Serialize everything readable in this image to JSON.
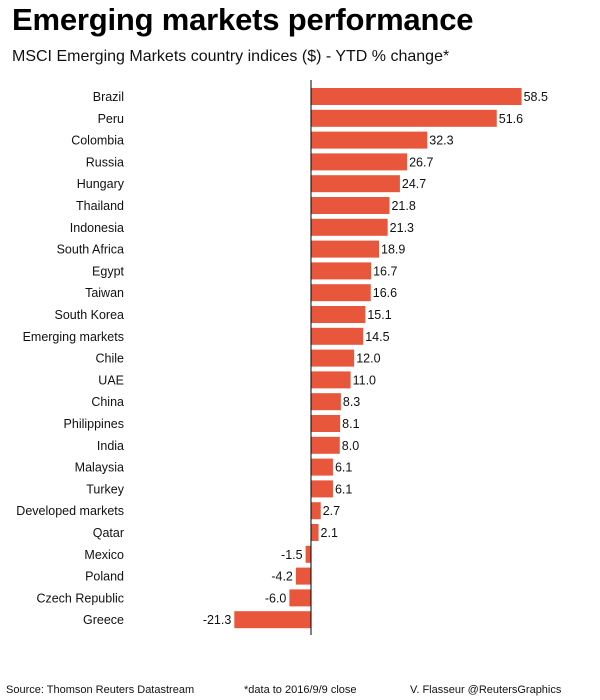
{
  "chart_data": {
    "type": "bar",
    "orientation": "horizontal",
    "title": "Emerging markets performance",
    "subtitle": "MSCI Emerging Markets country indices ($) - YTD % change*",
    "categories": [
      "Brazil",
      "Peru",
      "Colombia",
      "Russia",
      "Hungary",
      "Thailand",
      "Indonesia",
      "South Africa",
      "Egypt",
      "Taiwan",
      "South Korea",
      "Emerging markets",
      "Chile",
      "UAE",
      "China",
      "Philippines",
      "India",
      "Malaysia",
      "Turkey",
      "Developed markets",
      "Qatar",
      "Mexico",
      "Poland",
      "Czech Republic",
      "Greece"
    ],
    "values": [
      58.5,
      51.6,
      32.3,
      26.7,
      24.7,
      21.8,
      21.3,
      18.9,
      16.7,
      16.6,
      15.1,
      14.5,
      12.0,
      11.0,
      8.3,
      8.1,
      8.0,
      6.1,
      6.1,
      2.7,
      2.1,
      -1.5,
      -4.2,
      -6.0,
      -21.3
    ],
    "value_labels": [
      "58.5",
      "51.6",
      "32.3",
      "26.7",
      "24.7",
      "21.8",
      "21.3",
      "18.9",
      "16.7",
      "16.6",
      "15.1",
      "14.5",
      "12.0",
      "11.0",
      "8.3",
      "8.1",
      "8.0",
      "6.1",
      "6.1",
      "2.7",
      "2.1",
      "-1.5",
      "-4.2",
      "-6.0",
      "-21.3"
    ],
    "xlim": [
      -22,
      59
    ],
    "grid": false,
    "legend": "none",
    "bar_color": "#e8573c"
  },
  "footer": {
    "source": "Source: Thomson Reuters Datastream",
    "note": "*data to 2016/9/9 close",
    "credit": "V. Flasseur @ReutersGraphics"
  }
}
